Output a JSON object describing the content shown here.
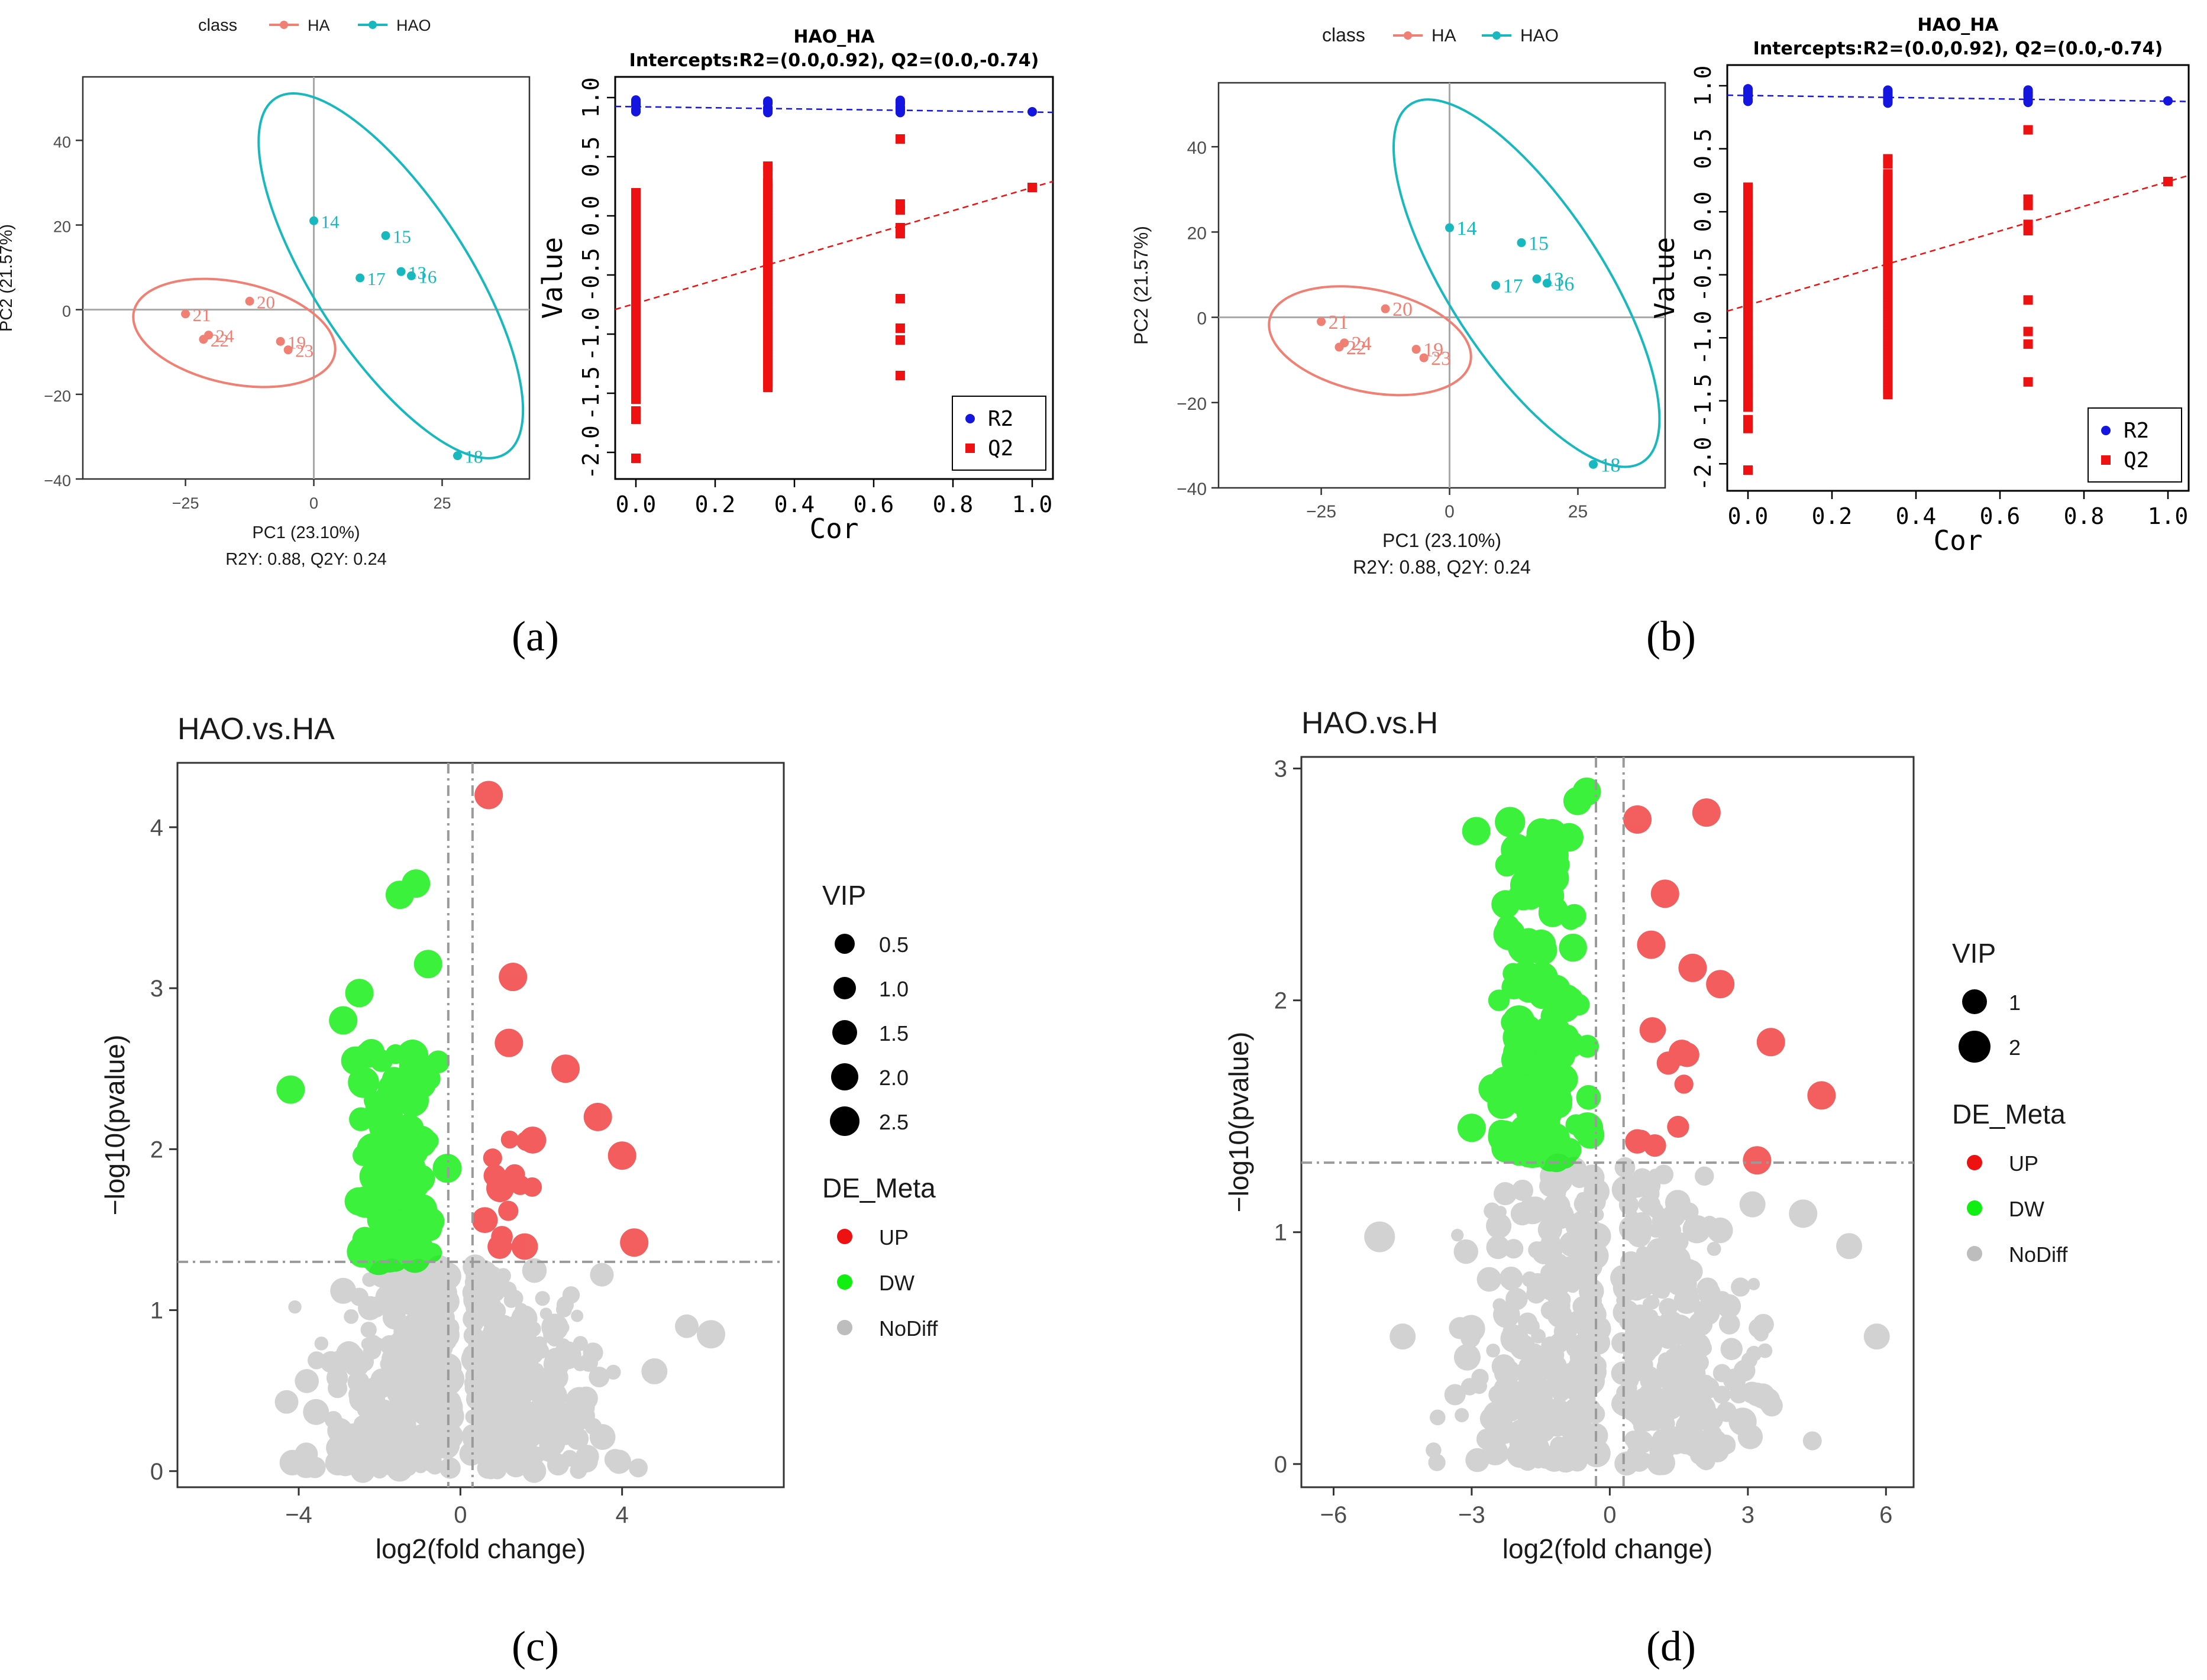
{
  "panels": {
    "a": {
      "label": "(a)"
    },
    "b": {
      "label": "(b)"
    },
    "c": {
      "label": "(c)"
    },
    "d": {
      "label": "(d)"
    }
  },
  "colors": {
    "ha": "#f07f74",
    "hao": "#19b8be",
    "r2": "#1515e0",
    "q2": "#ee1111",
    "up": "#ee1111",
    "dw": "#11ee11",
    "nodiff": "#bdbdbd"
  },
  "pca": {
    "legend_title": "class",
    "legend_items": [
      "HA",
      "HAO"
    ],
    "xlabel": "PC1 (23.10%)",
    "ylabel": "PC2 (21.57%)",
    "subtitle": "R2Y: 0.88, Q2Y: 0.24",
    "xticks": [
      -25,
      0,
      25
    ],
    "yticks": [
      -40,
      -20,
      0,
      20,
      40
    ],
    "xlim": [
      -45,
      42
    ],
    "ylim": [
      -40,
      55
    ],
    "points": [
      {
        "id": "14",
        "group": "HAO",
        "x": 0,
        "y": 21
      },
      {
        "id": "15",
        "group": "HAO",
        "x": 14,
        "y": 17.5
      },
      {
        "id": "17",
        "group": "HAO",
        "x": 9,
        "y": 7.5
      },
      {
        "id": "13",
        "group": "HAO",
        "x": 17,
        "y": 9
      },
      {
        "id": "16",
        "group": "HAO",
        "x": 19,
        "y": 8
      },
      {
        "id": "18",
        "group": "HAO",
        "x": 28,
        "y": -34.5
      },
      {
        "id": "20",
        "group": "HA",
        "x": -12.5,
        "y": 2
      },
      {
        "id": "21",
        "group": "HA",
        "x": -25,
        "y": -1
      },
      {
        "id": "24",
        "group": "HA",
        "x": -20.5,
        "y": -6
      },
      {
        "id": "22",
        "group": "HA",
        "x": -21.5,
        "y": -7
      },
      {
        "id": "19",
        "group": "HA",
        "x": -6.5,
        "y": -7.5
      },
      {
        "id": "23",
        "group": "HA",
        "x": -5,
        "y": -9.5
      }
    ]
  },
  "perm": {
    "title": "HAO_HA",
    "subtitle": "Intercepts:R2=(0.0,0.92), Q2=(0.0,-0.74)",
    "xlabel": "Cor",
    "ylabel": "Value",
    "xticks": [
      "0.0",
      "0.2",
      "0.4",
      "0.6",
      "0.8",
      "1.0"
    ],
    "yticks": [
      "-2.0",
      "-1.5",
      "-1.0",
      "-0.5",
      "0.0",
      "0.5",
      "1.0"
    ],
    "legend": [
      "R2",
      "Q2"
    ]
  },
  "volcano_c": {
    "title": "HAO.vs.HA",
    "xlabel": "log2(fold change)",
    "ylabel": "−log10(pvalue)",
    "xticks": [
      "−4",
      "0",
      "4"
    ],
    "yticks": [
      "0",
      "1",
      "2",
      "3",
      "4"
    ],
    "vip_title": "VIP",
    "vip_items": [
      "0.5",
      "1.0",
      "1.5",
      "2.0",
      "2.5"
    ],
    "de_title": "DE_Meta",
    "de_items": [
      "UP",
      "DW",
      "NoDiff"
    ]
  },
  "volcano_d": {
    "title": "HAO.vs.H",
    "xlabel": "log2(fold change)",
    "ylabel": "−log10(pvalue)",
    "xticks": [
      "−6",
      "−3",
      "0",
      "3",
      "6"
    ],
    "yticks": [
      "0",
      "1",
      "2",
      "3"
    ],
    "vip_title": "VIP",
    "vip_items": [
      "1",
      "2"
    ],
    "de_title": "DE_Meta",
    "de_items": [
      "UP",
      "DW",
      "NoDiff"
    ]
  },
  "chart_data": [
    {
      "type": "scatter",
      "panel": "a",
      "title": "",
      "xlabel": "PC1 (23.10%)",
      "ylabel": "PC2 (21.57%)",
      "series": [
        {
          "name": "HA",
          "labels": [
            "20",
            "21",
            "24",
            "22",
            "19",
            "23"
          ],
          "x": [
            -12.5,
            -25,
            -20.5,
            -21.5,
            -6.5,
            -5
          ],
          "y": [
            2,
            -1,
            -6,
            -7,
            -7.5,
            -9.5
          ]
        },
        {
          "name": "HAO",
          "labels": [
            "14",
            "15",
            "17",
            "13",
            "16",
            "18"
          ],
          "x": [
            0,
            14,
            9,
            17,
            19,
            28
          ],
          "y": [
            21,
            17.5,
            7.5,
            9,
            8,
            -34.5
          ]
        }
      ]
    },
    {
      "type": "scatter",
      "panel": "a",
      "title": "HAO_HA",
      "subtitle": "Intercepts:R2=(0.0,0.92), Q2=(0.0,-0.74)",
      "xlabel": "Cor",
      "ylabel": "Value",
      "xlim": [
        0,
        1
      ],
      "ylim": [
        -2.1,
        1.05
      ],
      "series": [
        {
          "name": "R2",
          "intercept_line": [
            [
              0,
              0.92
            ],
            [
              1,
              0.88
            ]
          ]
        },
        {
          "name": "Q2",
          "intercept_line": [
            [
              0,
              -0.74
            ],
            [
              1,
              0.24
            ]
          ],
          "q2_range_at_0": [
            -2.05,
            0.2
          ],
          "q2_range_at_0.33": [
            -1.45,
            0.42
          ],
          "q2_points_at_0.67": [
            0.65,
            0.1,
            0.05,
            -0.1,
            -0.7,
            -0.95,
            -1.05,
            -1.35
          ],
          "q2_at_1": 0.24
        }
      ]
    },
    {
      "type": "scatter",
      "panel": "c",
      "title": "HAO.vs.HA",
      "xlabel": "log2(fold change)",
      "ylabel": "−log10(pvalue)",
      "xlim": [
        -7,
        8
      ],
      "ylim": [
        -0.1,
        4.4
      ],
      "thresholds": {
        "x": [
          -0.3,
          0.3
        ],
        "y": 1.3
      },
      "highlights_up": [
        [
          0.7,
          4.2
        ],
        [
          1.3,
          3.07
        ],
        [
          1.2,
          2.66
        ],
        [
          2.6,
          2.5
        ],
        [
          3.4,
          2.2
        ],
        [
          4.0,
          1.96
        ],
        [
          4.3,
          1.42
        ]
      ],
      "highlights_dw": [
        [
          -4.2,
          2.37
        ],
        [
          -1.1,
          3.65
        ],
        [
          -1.5,
          3.58
        ],
        [
          -0.8,
          3.15
        ],
        [
          -2.5,
          2.97
        ],
        [
          -2.9,
          2.8
        ],
        [
          -2.6,
          2.55
        ]
      ]
    },
    {
      "type": "scatter",
      "panel": "d",
      "title": "HAO.vs.H",
      "xlabel": "log2(fold change)",
      "ylabel": "−log10(pvalue)",
      "xlim": [
        -6.7,
        6.6
      ],
      "ylim": [
        -0.1,
        3.05
      ],
      "thresholds": {
        "x": [
          -0.3,
          0.3
        ],
        "y": 1.3
      },
      "highlights_up": [
        [
          0.6,
          2.78
        ],
        [
          2.1,
          2.81
        ],
        [
          1.2,
          2.46
        ],
        [
          0.9,
          2.24
        ],
        [
          1.8,
          2.14
        ],
        [
          2.4,
          2.07
        ],
        [
          3.5,
          1.82
        ],
        [
          4.6,
          1.59
        ],
        [
          3.2,
          1.31
        ]
      ],
      "highlights_dw": [
        [
          -0.5,
          2.9
        ],
        [
          -0.7,
          2.86
        ],
        [
          -2.9,
          2.73
        ],
        [
          -1.8,
          2.58
        ],
        [
          -1.3,
          2.45
        ],
        [
          -3.0,
          1.45
        ]
      ]
    }
  ]
}
